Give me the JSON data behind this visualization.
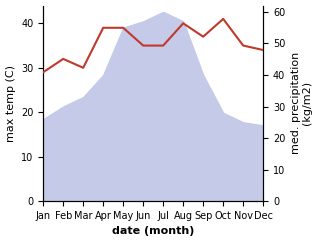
{
  "months": [
    "Jan",
    "Feb",
    "Mar",
    "Apr",
    "May",
    "Jun",
    "Jul",
    "Aug",
    "Sep",
    "Oct",
    "Nov",
    "Dec"
  ],
  "x": [
    1,
    2,
    3,
    4,
    5,
    6,
    7,
    8,
    9,
    10,
    11,
    12
  ],
  "precipitation": [
    26,
    30,
    33,
    40,
    55,
    57,
    60,
    57,
    40,
    28,
    25,
    24
  ],
  "temperature": [
    29,
    32,
    30,
    39,
    39,
    35,
    35,
    40,
    37,
    41,
    35,
    34
  ],
  "temp_color": "#c0392b",
  "precip_color_fill": "#c5cae9",
  "ylabel_left": "max temp (C)",
  "ylabel_right": "med. precipitation\n(kg/m2)",
  "xlabel": "date (month)",
  "ylim_left": [
    0,
    44
  ],
  "ylim_right": [
    0,
    62
  ],
  "yticks_left": [
    0,
    10,
    20,
    30,
    40
  ],
  "yticks_right": [
    0,
    10,
    20,
    30,
    40,
    50,
    60
  ],
  "label_fontsize": 8,
  "tick_fontsize": 7
}
